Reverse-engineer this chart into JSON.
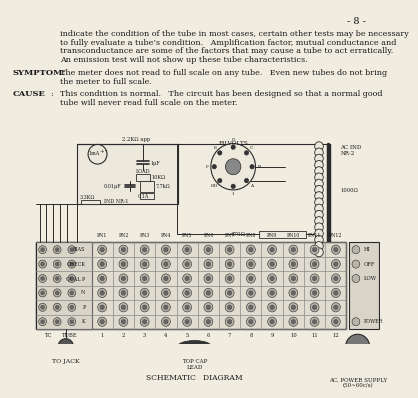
{
  "background_color": "#f0ece0",
  "page_number_text": "- 8 -",
  "body_text_lines": [
    "indicate the condition of the tube in most cases, certain other tests may be necessary",
    "to fully evaluate a tube’s condition.   Amplification factor, mutual conductance and",
    "transconductance are some of the factors that may cause a tube to act erratically.",
    "An emission test will not show up these tube characteristics."
  ],
  "symptom_label": "SYMPTOM:",
  "symptom_lines": [
    "The meter does not read to full scale on any tube.   Even new tubes do not bring",
    "the meter to full scale."
  ],
  "cause_label": "CAUSE",
  "cause_colon": ":",
  "cause_lines": [
    "This condition is normal.   The circuit has been designed so that a normal good",
    "tube will never read full scale on the meter."
  ],
  "diagram_title": "SCHEMATIC   DIAGRAM",
  "to_jack": "TO JACK",
  "top_cap": "TOP CAP\nLEAD",
  "ac_power": "AC, POWER SUPPLY\n(50∼60c/s)",
  "ac_ind": "AC IND\nNR-2",
  "pin_labels": [
    "PN1",
    "PN2",
    "PN3",
    "PN4",
    "PN5",
    "PN6",
    "PN7",
    "PN8",
    "PN9",
    "PN10",
    "PN11",
    "PN12"
  ],
  "left_labels": [
    "BIAS",
    "CHECK",
    "QUAL P",
    "N",
    "P",
    "K"
  ],
  "hi_off_low": [
    "HI",
    "OFF",
    "LOW"
  ],
  "line_color": "#2a2a2a",
  "text_color": "#1a1a1a"
}
